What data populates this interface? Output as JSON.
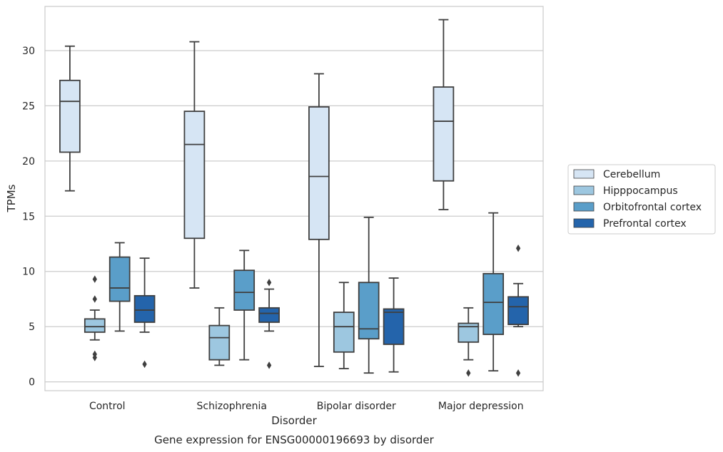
{
  "chart_data": {
    "type": "box",
    "title": "",
    "caption": "Gene expression for ENSG00000196693 by disorder",
    "xlabel": "Disorder",
    "ylabel": "TPMs",
    "ylim": [
      -0.8,
      34.0
    ],
    "yticks": [
      0,
      5,
      10,
      15,
      20,
      25,
      30
    ],
    "grid": "horizontal",
    "legend_position": "right",
    "categories": [
      "Control",
      "Schizophrenia",
      "Bipolar disorder",
      "Major depression"
    ],
    "series": [
      {
        "name": "Cerebellum",
        "color": "#d6e5f4",
        "boxes": [
          {
            "whislo": 17.3,
            "q1": 20.8,
            "med": 25.4,
            "q3": 27.3,
            "whishi": 30.4,
            "fliers": []
          },
          {
            "whislo": 8.5,
            "q1": 13.0,
            "med": 21.5,
            "q3": 24.5,
            "whishi": 30.8,
            "fliers": []
          },
          {
            "whislo": 1.4,
            "q1": 12.9,
            "med": 18.6,
            "q3": 24.9,
            "whishi": 27.9,
            "fliers": []
          },
          {
            "whislo": 15.6,
            "q1": 18.2,
            "med": 23.6,
            "q3": 26.7,
            "whishi": 32.8,
            "fliers": []
          }
        ]
      },
      {
        "name": "Hipppocampus",
        "color": "#9dc7e0",
        "boxes": [
          {
            "whislo": 3.8,
            "q1": 4.5,
            "med": 5.0,
            "q3": 5.7,
            "whishi": 6.5,
            "fliers": [
              9.3,
              7.5,
              2.5,
              2.2
            ]
          },
          {
            "whislo": 1.5,
            "q1": 2.0,
            "med": 4.0,
            "q3": 5.1,
            "whishi": 6.7,
            "fliers": []
          },
          {
            "whislo": 1.2,
            "q1": 2.7,
            "med": 5.0,
            "q3": 6.3,
            "whishi": 9.0,
            "fliers": []
          },
          {
            "whislo": 2.0,
            "q1": 3.6,
            "med": 5.0,
            "q3": 5.3,
            "whishi": 6.7,
            "fliers": [
              0.8
            ]
          }
        ]
      },
      {
        "name": "Orbitofrontal cortex",
        "color": "#5a9ec9",
        "boxes": [
          {
            "whislo": 4.6,
            "q1": 7.3,
            "med": 8.5,
            "q3": 11.3,
            "whishi": 12.6,
            "fliers": []
          },
          {
            "whislo": 2.0,
            "q1": 6.5,
            "med": 8.1,
            "q3": 10.1,
            "whishi": 11.9,
            "fliers": []
          },
          {
            "whislo": 0.8,
            "q1": 3.9,
            "med": 4.8,
            "q3": 9.0,
            "whishi": 14.9,
            "fliers": []
          },
          {
            "whislo": 1.0,
            "q1": 4.3,
            "med": 7.2,
            "q3": 9.8,
            "whishi": 15.3,
            "fliers": []
          }
        ]
      },
      {
        "name": "Prefrontal cortex",
        "color": "#2464ab",
        "boxes": [
          {
            "whislo": 4.5,
            "q1": 5.4,
            "med": 6.5,
            "q3": 7.8,
            "whishi": 11.2,
            "fliers": [
              1.6
            ]
          },
          {
            "whislo": 4.6,
            "q1": 5.4,
            "med": 6.2,
            "q3": 6.7,
            "whishi": 8.4,
            "fliers": [
              9.0,
              1.5
            ]
          },
          {
            "whislo": 0.9,
            "q1": 3.4,
            "med": 6.3,
            "q3": 6.6,
            "whishi": 9.4,
            "fliers": []
          },
          {
            "whislo": 5.0,
            "q1": 5.2,
            "med": 6.8,
            "q3": 7.7,
            "whishi": 8.9,
            "fliers": [
              12.1,
              0.8
            ]
          }
        ]
      }
    ]
  }
}
